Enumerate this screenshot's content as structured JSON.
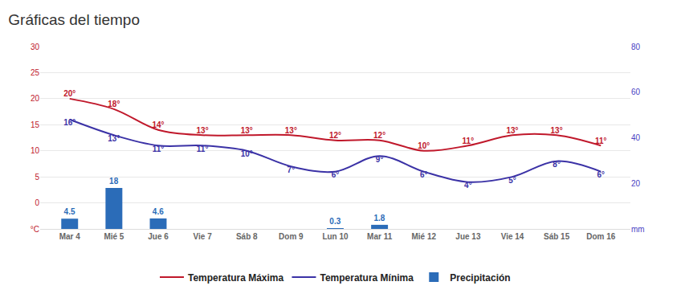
{
  "chart_data": {
    "type": "line",
    "title": "Gráficas del tiempo",
    "categories": [
      "Mar 4",
      "Mié 5",
      "Jue 6",
      "Vie 7",
      "Sáb 8",
      "Dom 9",
      "Lun 10",
      "Mar 11",
      "Mié 12",
      "Jue 13",
      "Vie 14",
      "Sáb 15",
      "Dom 16"
    ],
    "ylim": [
      -5,
      30
    ],
    "yticks": [
      {
        "value": -5,
        "label": "°C"
      },
      0,
      5,
      10,
      15,
      20,
      25,
      30
    ],
    "y2lim": [
      0,
      80
    ],
    "y2ticks": [
      {
        "value": 0,
        "label": "mm"
      },
      20,
      40,
      60,
      80
    ],
    "grid": true,
    "legend": "bottom",
    "data_labels": true,
    "series": [
      {
        "name": "Temperatura Máxima",
        "type": "line",
        "color": "#c0182b",
        "values": [
          20,
          18,
          14,
          13,
          13,
          13,
          12,
          12,
          10,
          11,
          13,
          13,
          11
        ],
        "value_labels": [
          "20°",
          "18°",
          "14°",
          "13°",
          "13°",
          "13°",
          "12°",
          "12°",
          "10°",
          "11°",
          "13°",
          "13°",
          "11°"
        ]
      },
      {
        "name": "Temperatura Mínima",
        "type": "line",
        "color": "#3b32a6",
        "values": [
          16,
          13,
          11,
          11,
          10,
          7,
          6,
          9,
          6,
          4,
          5,
          8,
          6
        ],
        "value_labels": [
          "16°",
          "13°",
          "11°",
          "11°",
          "10°",
          "7°",
          "6°",
          "9°",
          "6°",
          "4°",
          "5°",
          "8°",
          "6°"
        ]
      },
      {
        "name": "Precipitación",
        "type": "bar",
        "axis": "y2",
        "color": "#2b6cb8",
        "values": [
          4.5,
          18,
          4.6,
          null,
          null,
          null,
          0.3,
          1.8,
          null,
          null,
          null,
          null,
          null
        ]
      }
    ]
  }
}
